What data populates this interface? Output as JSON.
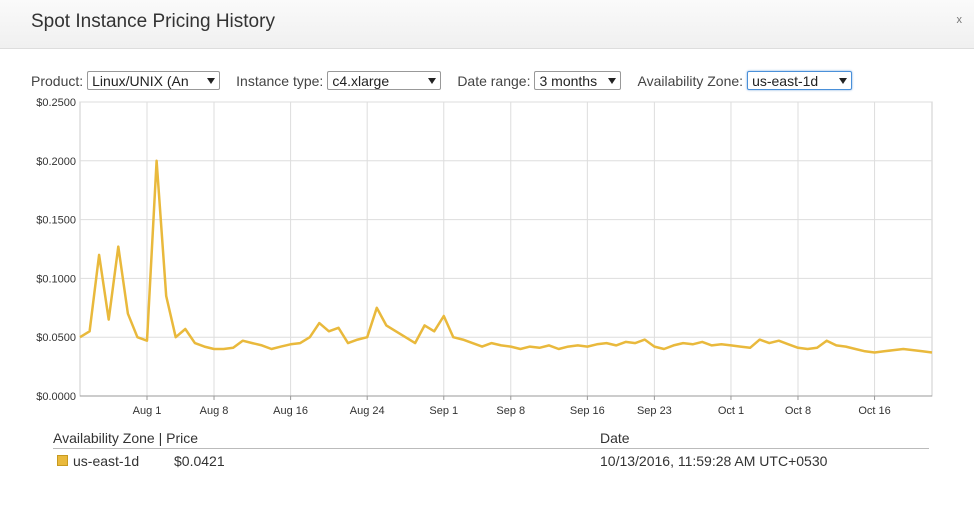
{
  "header": {
    "title": "Spot Instance Pricing History",
    "close": "x"
  },
  "controls": [
    {
      "label": "Product:",
      "value": "Linux/UNIX (An"
    },
    {
      "label": "Instance type:",
      "value": "c4.xlarge"
    },
    {
      "label": "Date range:",
      "value": "3 months"
    },
    {
      "label": "Availability Zone:",
      "value": "us-east-1d"
    }
  ],
  "chart_data": {
    "type": "line",
    "x": [
      "Jul 25",
      "Jul 26",
      "Jul 27",
      "Jul 28",
      "Jul 29",
      "Jul 30",
      "Jul 31",
      "Aug 1",
      "Aug 2",
      "Aug 3",
      "Aug 4",
      "Aug 5",
      "Aug 6",
      "Aug 7",
      "Aug 8",
      "Aug 9",
      "Aug 10",
      "Aug 11",
      "Aug 12",
      "Aug 13",
      "Aug 14",
      "Aug 15",
      "Aug 16",
      "Aug 17",
      "Aug 18",
      "Aug 19",
      "Aug 20",
      "Aug 21",
      "Aug 22",
      "Aug 23",
      "Aug 24",
      "Aug 25",
      "Aug 26",
      "Aug 27",
      "Aug 28",
      "Aug 29",
      "Aug 30",
      "Aug 31",
      "Sep 1",
      "Sep 2",
      "Sep 3",
      "Sep 4",
      "Sep 5",
      "Sep 6",
      "Sep 7",
      "Sep 8",
      "Sep 9",
      "Sep 10",
      "Sep 11",
      "Sep 12",
      "Sep 13",
      "Sep 14",
      "Sep 15",
      "Sep 16",
      "Sep 17",
      "Sep 18",
      "Sep 19",
      "Sep 20",
      "Sep 21",
      "Sep 22",
      "Sep 23",
      "Sep 24",
      "Sep 25",
      "Sep 26",
      "Sep 27",
      "Sep 28",
      "Sep 29",
      "Sep 30",
      "Oct 1",
      "Oct 2",
      "Oct 3",
      "Oct 4",
      "Oct 5",
      "Oct 6",
      "Oct 7",
      "Oct 8",
      "Oct 9",
      "Oct 10",
      "Oct 11",
      "Oct 12",
      "Oct 13",
      "Oct 14",
      "Oct 15",
      "Oct 16",
      "Oct 17",
      "Oct 18",
      "Oct 19",
      "Oct 20",
      "Oct 21",
      "Oct 22"
    ],
    "series": [
      {
        "name": "us-east-1d",
        "color": "#e9b93c",
        "values": [
          0.05,
          0.055,
          0.12,
          0.065,
          0.127,
          0.07,
          0.05,
          0.047,
          0.2,
          0.085,
          0.05,
          0.057,
          0.045,
          0.042,
          0.04,
          0.04,
          0.041,
          0.047,
          0.045,
          0.043,
          0.04,
          0.042,
          0.044,
          0.045,
          0.05,
          0.062,
          0.055,
          0.058,
          0.045,
          0.048,
          0.05,
          0.075,
          0.06,
          0.055,
          0.05,
          0.045,
          0.06,
          0.055,
          0.068,
          0.05,
          0.048,
          0.045,
          0.042,
          0.045,
          0.043,
          0.042,
          0.04,
          0.042,
          0.041,
          0.043,
          0.04,
          0.042,
          0.043,
          0.042,
          0.044,
          0.045,
          0.043,
          0.046,
          0.045,
          0.048,
          0.042,
          0.04,
          0.043,
          0.045,
          0.044,
          0.046,
          0.043,
          0.044,
          0.043,
          0.042,
          0.041,
          0.048,
          0.045,
          0.047,
          0.044,
          0.041,
          0.04,
          0.041,
          0.047,
          0.043,
          0.042,
          0.04,
          0.038,
          0.037,
          0.038,
          0.039,
          0.04,
          0.039,
          0.038,
          0.037
        ]
      }
    ],
    "ylim": [
      0,
      0.25
    ],
    "yticks": [
      {
        "value": 0,
        "label": "$0.0000"
      },
      {
        "value": 0.05,
        "label": "$0.0500"
      },
      {
        "value": 0.1,
        "label": "$0.1000"
      },
      {
        "value": 0.15,
        "label": "$0.1500"
      },
      {
        "value": 0.2,
        "label": "$0.2000"
      },
      {
        "value": 0.25,
        "label": "$0.2500"
      }
    ],
    "xticks": [
      "Aug 1",
      "Aug 8",
      "Aug 16",
      "Aug 24",
      "Sep 1",
      "Sep 8",
      "Sep 16",
      "Sep 23",
      "Oct 1",
      "Oct 8",
      "Oct 16"
    ],
    "grid": true
  },
  "table": {
    "headers": [
      "Availability Zone | Price",
      "Date"
    ],
    "rows": [
      [
        "us-east-1d",
        "$0.0421",
        "10/13/2016, 11:59:28 AM UTC+0530"
      ]
    ]
  }
}
